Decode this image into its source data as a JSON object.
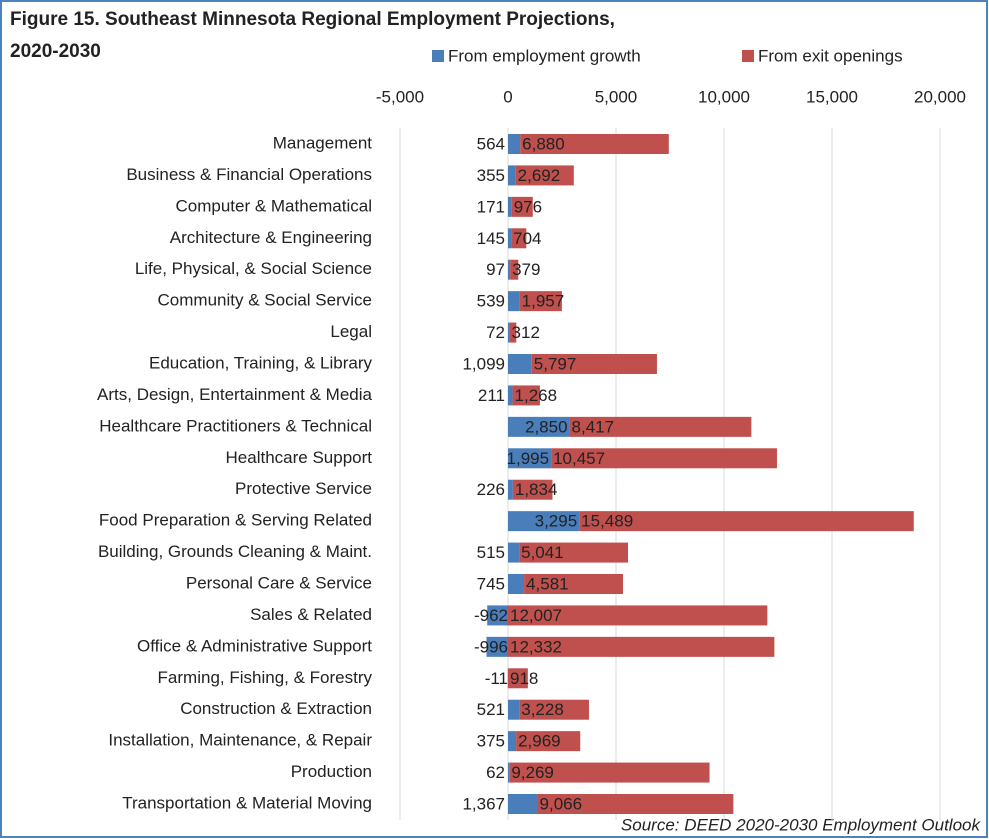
{
  "chart_data": {
    "type": "stacked_barh",
    "title": [
      "Figure 15. Southeast Minnesota Regional Employment Projections,",
      "2020-2030"
    ],
    "source": "Source: DEED 2020-2030 Employment Outlook",
    "categories": [
      "Management",
      "Business & Financial Operations",
      "Computer & Mathematical",
      "Architecture & Engineering",
      "Life, Physical, & Social Science",
      "Community & Social Service",
      "Legal",
      "Education, Training, & Library",
      "Arts, Design, Entertainment & Media",
      "Healthcare Practitioners & Technical",
      "Healthcare Support",
      "Protective Service",
      "Food Preparation & Serving Related",
      "Building, Grounds Cleaning & Maint.",
      "Personal Care & Service",
      "Sales & Related",
      "Office & Administrative Support",
      "Farming, Fishing, & Forestry",
      "Construction & Extraction",
      "Installation, Maintenance, & Repair",
      "Production",
      "Transportation & Material Moving"
    ],
    "series": [
      {
        "name": "From employment growth",
        "color": "#4a7ebb",
        "values": [
          564,
          355,
          171,
          145,
          97,
          539,
          72,
          1099,
          211,
          2850,
          1995,
          226,
          3295,
          515,
          745,
          -962,
          -996,
          -11,
          521,
          375,
          62,
          1367
        ],
        "value_labels": [
          "564",
          "355",
          "171",
          "145",
          "97",
          "539",
          "72",
          "1,099",
          "211",
          "2,850",
          "1,995",
          "226",
          "3,295",
          "515",
          "745",
          "-962",
          "-996",
          "-11",
          "521",
          "375",
          "62",
          "1,367"
        ]
      },
      {
        "name": "From exit openings",
        "color": "#c0504d",
        "values": [
          6880,
          2692,
          976,
          704,
          379,
          1957,
          312,
          5797,
          1268,
          8417,
          10457,
          1834,
          15489,
          5041,
          4581,
          12007,
          12332,
          918,
          3228,
          2969,
          9269,
          9066
        ],
        "value_labels": [
          "6,880",
          "2,692",
          "976",
          "704",
          "379",
          "1,957",
          "312",
          "5,797",
          "1,268",
          "8,417",
          "10,457",
          "1,834",
          "15,489",
          "5,041",
          "4,581",
          "12,007",
          "12,332",
          "918",
          "3,228",
          "2,969",
          "9,269",
          "9,066"
        ]
      }
    ],
    "xlim": [
      -5000,
      20000
    ],
    "xticks": [
      {
        "value": -5000,
        "label": "-5,000"
      },
      0,
      {
        "value": 5000,
        "label": "5,000"
      },
      {
        "value": 10000,
        "label": "10,000"
      },
      {
        "value": 15000,
        "label": "15,000"
      },
      {
        "value": 20000,
        "label": "20,000"
      }
    ],
    "grid": true,
    "legend": "top"
  }
}
